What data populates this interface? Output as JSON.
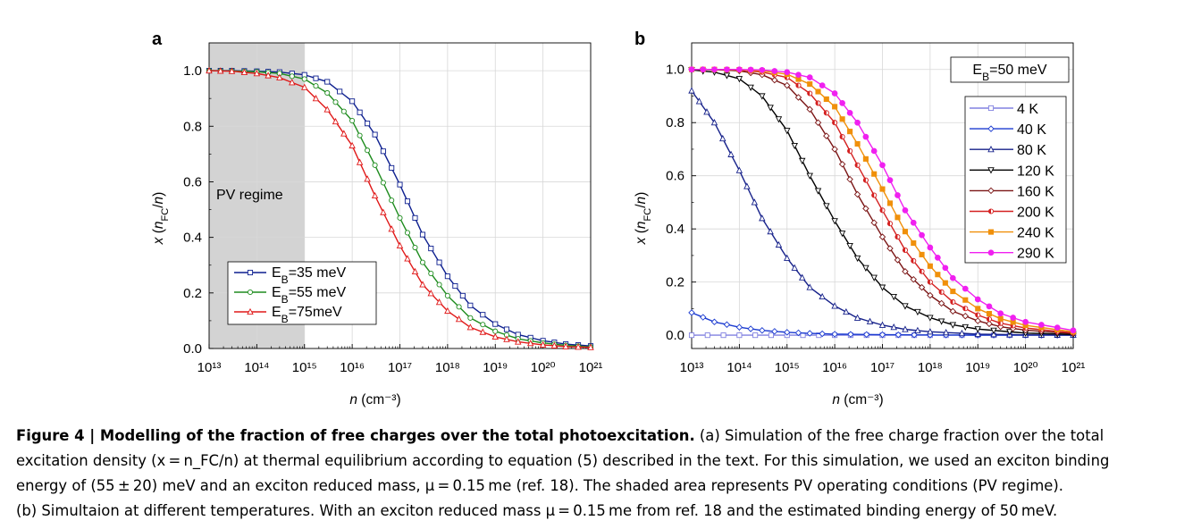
{
  "chart_data": [
    {
      "panel_label": "a",
      "type": "line",
      "x_scale": "log",
      "xlim": [
        "1e13",
        "1e21"
      ],
      "ylim": [
        0,
        1.1
      ],
      "xlabel": "n (cm⁻³)",
      "ylabel": "x (n_FC/n)",
      "x_tick_labels": [
        "10¹³",
        "10¹⁴",
        "10¹⁵",
        "10¹⁶",
        "10¹⁷",
        "10¹⁸",
        "10¹⁹",
        "10²⁰",
        "10²¹"
      ],
      "y_tick_labels": [
        "0.0",
        "0.2",
        "0.4",
        "0.6",
        "0.8",
        "1.0"
      ],
      "grid": true,
      "legend": "bottom-left",
      "shaded_region": {
        "x_range": [
          "1e13",
          "1e15"
        ],
        "label": "PV regime",
        "color": "#d3d3d3"
      },
      "series": [
        {
          "name": "EB=35 meV",
          "legend_main": "E",
          "legend_sub": "B",
          "legend_rest": "=35 meV",
          "color": "#0d1f8f",
          "marker": "square",
          "x": [
            "1e13",
            "3e13",
            "1e14",
            "3e14",
            "1e15",
            "3e15",
            "1e16",
            "3e16",
            "1e17",
            "3e17",
            "1e18",
            "3e18",
            "1e19",
            "3e19",
            "1e20",
            "3e20",
            "1e21"
          ],
          "y": [
            1.0,
            1.0,
            0.998,
            0.995,
            0.985,
            0.96,
            0.89,
            0.77,
            0.59,
            0.41,
            0.26,
            0.155,
            0.088,
            0.05,
            0.028,
            0.016,
            0.009
          ]
        },
        {
          "name": "EB=55 meV",
          "legend_main": "E",
          "legend_sub": "B",
          "legend_rest": "=55 meV",
          "color": "#1e8c1e",
          "marker": "circle",
          "x": [
            "1e13",
            "3e13",
            "1e14",
            "3e14",
            "1e15",
            "3e15",
            "1e16",
            "3e16",
            "1e17",
            "3e17",
            "1e18",
            "3e18",
            "1e19",
            "3e19",
            "1e20",
            "3e20",
            "1e21"
          ],
          "y": [
            1.0,
            0.999,
            0.996,
            0.99,
            0.97,
            0.92,
            0.82,
            0.66,
            0.47,
            0.31,
            0.19,
            0.11,
            0.062,
            0.035,
            0.02,
            0.011,
            0.006
          ]
        },
        {
          "name": "EB=75meV",
          "legend_main": "E",
          "legend_sub": "B",
          "legend_rest": "=75meV",
          "color": "#e01818",
          "marker": "triangle",
          "x": [
            "1e13",
            "3e13",
            "1e14",
            "3e14",
            "1e15",
            "3e15",
            "1e16",
            "3e16",
            "1e17",
            "3e17",
            "1e18",
            "3e18",
            "1e19",
            "3e19",
            "1e20",
            "3e20",
            "1e21"
          ],
          "y": [
            1.0,
            0.998,
            0.99,
            0.975,
            0.94,
            0.86,
            0.73,
            0.55,
            0.37,
            0.23,
            0.135,
            0.076,
            0.042,
            0.024,
            0.013,
            0.007,
            0.004
          ]
        }
      ]
    },
    {
      "panel_label": "b",
      "type": "line",
      "x_scale": "log",
      "xlim": [
        "1e13",
        "1e21"
      ],
      "ylim": [
        -0.05,
        1.1
      ],
      "xlabel": "n (cm⁻³)",
      "ylabel": "x (n_FC/n)",
      "x_tick_labels": [
        "10¹³",
        "10¹⁴",
        "10¹⁵",
        "10¹⁶",
        "10¹⁷",
        "10¹⁸",
        "10¹⁹",
        "10²⁰",
        "10²¹"
      ],
      "y_tick_labels": [
        "0.0",
        "0.2",
        "0.4",
        "0.6",
        "0.8",
        "1.0"
      ],
      "grid": true,
      "legend": "top-right",
      "eb_label": {
        "main": "E",
        "sub": "B",
        "rest": "=50 meV"
      },
      "series": [
        {
          "name": "4 K",
          "color": "#8080e0",
          "marker": "square",
          "x": [
            "1e13",
            "1e14",
            "1e15",
            "1e16",
            "1e17",
            "1e18",
            "1e19",
            "1e20",
            "1e21"
          ],
          "y": [
            0.0,
            0.0,
            0.0,
            0.0,
            0.0,
            0.0,
            0.0,
            0.0,
            0.0
          ]
        },
        {
          "name": "40 K",
          "color": "#1a3ad0",
          "marker": "diamond",
          "x": [
            "1e13",
            "3e13",
            "1e14",
            "3e14",
            "1e15",
            "3e15",
            "1e16",
            "1e17",
            "1e18",
            "1e19",
            "1e20",
            "1e21"
          ],
          "y": [
            0.085,
            0.05,
            0.03,
            0.018,
            0.011,
            0.007,
            0.004,
            0.002,
            0.001,
            0.0005,
            0.0002,
            0.0001
          ]
        },
        {
          "name": "80 K",
          "color": "#16218a",
          "marker": "triangle",
          "x": [
            "1e13",
            "3e13",
            "1e14",
            "3e14",
            "1e15",
            "3e15",
            "1e16",
            "3e16",
            "1e17",
            "3e17",
            "1e18",
            "1e19",
            "1e20",
            "1e21"
          ],
          "y": [
            0.92,
            0.8,
            0.62,
            0.44,
            0.29,
            0.18,
            0.11,
            0.065,
            0.038,
            0.022,
            0.013,
            0.004,
            0.0014,
            0.0005
          ]
        },
        {
          "name": "120 K",
          "color": "#000000",
          "marker": "triangle-down",
          "x": [
            "1e13",
            "3e13",
            "1e14",
            "3e14",
            "1e15",
            "3e15",
            "1e16",
            "3e16",
            "1e17",
            "3e17",
            "1e18",
            "3e18",
            "1e19",
            "1e20",
            "1e21"
          ],
          "y": [
            0.998,
            0.99,
            0.965,
            0.9,
            0.77,
            0.6,
            0.43,
            0.29,
            0.18,
            0.11,
            0.066,
            0.039,
            0.023,
            0.008,
            0.003
          ]
        },
        {
          "name": "160 K",
          "color": "#7a1414",
          "marker": "diamond",
          "x": [
            "1e13",
            "3e13",
            "1e14",
            "3e14",
            "1e15",
            "3e15",
            "1e16",
            "3e16",
            "1e17",
            "3e17",
            "1e18",
            "3e18",
            "1e19",
            "3e19",
            "1e20",
            "1e21"
          ],
          "y": [
            1.0,
            0.999,
            0.995,
            0.98,
            0.94,
            0.85,
            0.7,
            0.53,
            0.37,
            0.24,
            0.15,
            0.09,
            0.054,
            0.032,
            0.019,
            0.006
          ]
        },
        {
          "name": "200 K",
          "color": "#d42020",
          "marker": "half-circle",
          "x": [
            "1e13",
            "3e13",
            "1e14",
            "3e14",
            "1e15",
            "3e15",
            "1e16",
            "3e16",
            "1e17",
            "3e17",
            "1e18",
            "3e18",
            "1e19",
            "3e19",
            "1e20",
            "1e21"
          ],
          "y": [
            1.0,
            1.0,
            0.998,
            0.99,
            0.97,
            0.91,
            0.8,
            0.64,
            0.47,
            0.32,
            0.2,
            0.125,
            0.076,
            0.045,
            0.027,
            0.009
          ]
        },
        {
          "name": "240 K",
          "color": "#f0900a",
          "marker": "square-filled",
          "x": [
            "1e13",
            "3e13",
            "1e14",
            "3e14",
            "1e15",
            "3e15",
            "1e16",
            "3e16",
            "1e17",
            "3e17",
            "1e18",
            "3e18",
            "1e19",
            "3e19",
            "1e20",
            "1e21"
          ],
          "y": [
            1.0,
            1.0,
            0.999,
            0.995,
            0.982,
            0.945,
            0.86,
            0.72,
            0.55,
            0.39,
            0.26,
            0.165,
            0.1,
            0.062,
            0.037,
            0.013
          ]
        },
        {
          "name": "290 K",
          "color": "#f020f0",
          "marker": "circle-filled",
          "x": [
            "1e13",
            "3e13",
            "1e14",
            "3e14",
            "1e15",
            "3e15",
            "1e16",
            "3e16",
            "1e17",
            "3e17",
            "1e18",
            "3e18",
            "1e19",
            "3e19",
            "1e20",
            "1e21"
          ],
          "y": [
            1.0,
            1.0,
            1.0,
            0.998,
            0.99,
            0.97,
            0.91,
            0.8,
            0.64,
            0.47,
            0.33,
            0.215,
            0.135,
            0.082,
            0.05,
            0.018
          ]
        }
      ]
    }
  ],
  "caption": {
    "line1_bold": "Figure 4 | Modelling of the fraction of free charges over the total photoexcitation.",
    "line1_rest": " (a) Simulation of the free charge fraction over the total",
    "line2": "excitation density (x = n_FC/n) at thermal equilibrium according to equation (5) described in the text. For this simulation, we used an exciton binding",
    "line3": "energy of (55 ± 20) meV and an exciton reduced mass, μ = 0.15 me (ref. 18). The shaded area represents PV operating conditions (PV regime).",
    "line4": "(b) Simultaion at different temperatures. With an exciton reduced mass μ = 0.15 me from ref. 18 and the estimated binding energy of 50 meV."
  }
}
